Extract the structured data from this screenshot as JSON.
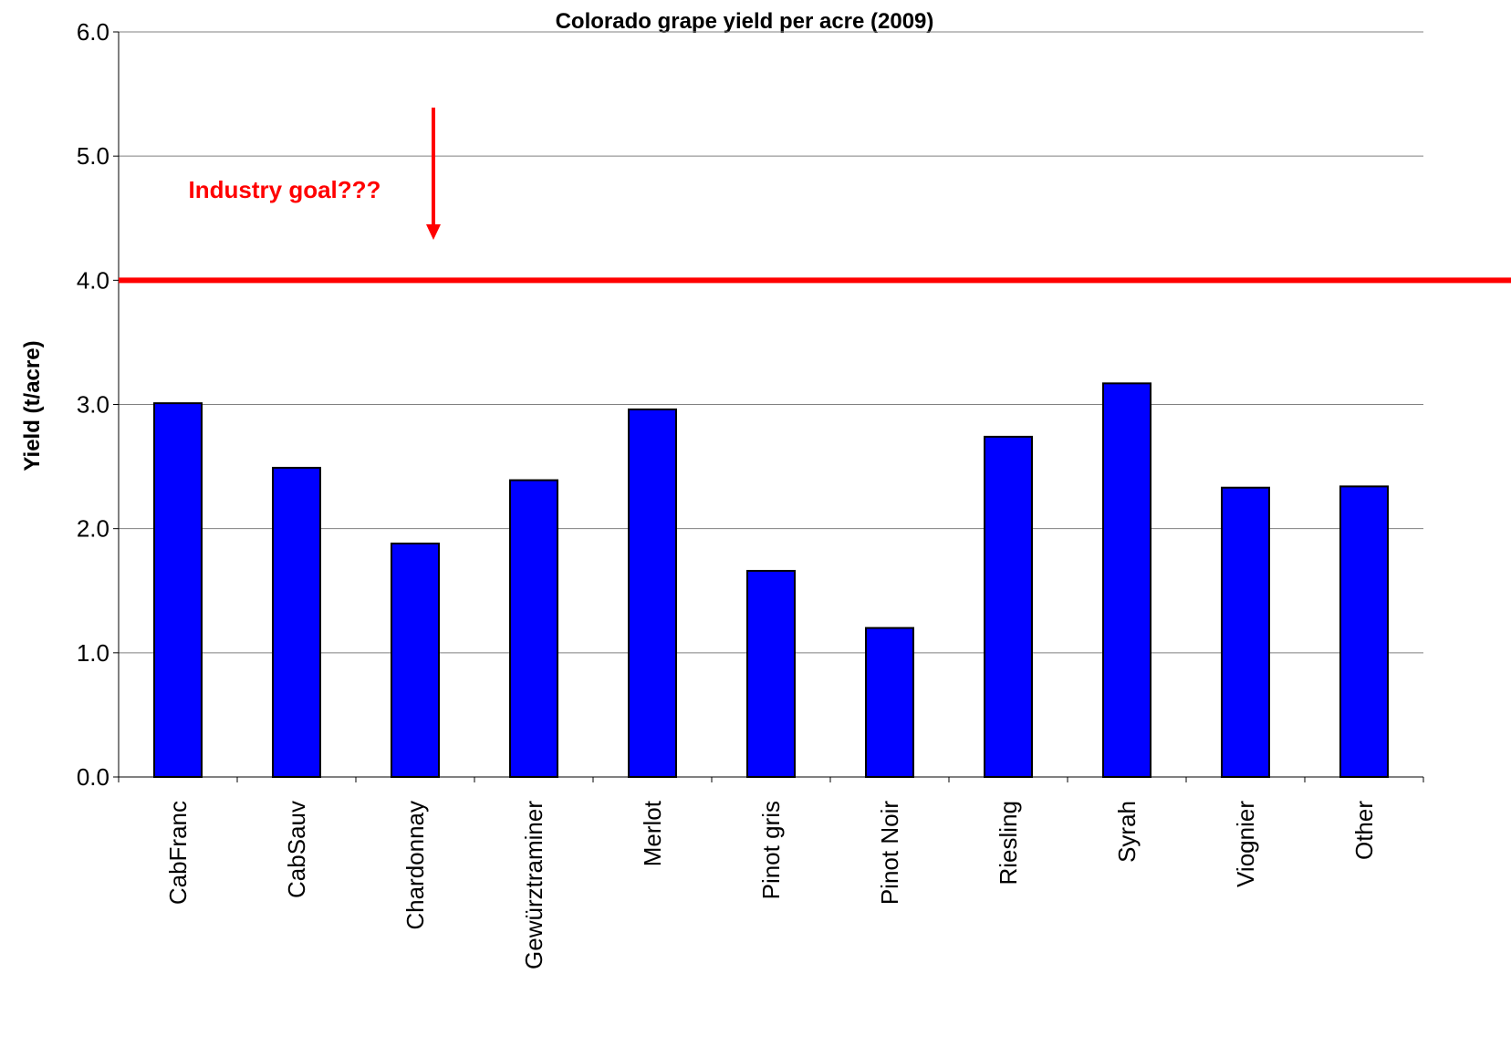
{
  "chart_data": {
    "type": "bar",
    "title": "Colorado grape yield per acre (2009)",
    "xlabel": "",
    "ylabel": "Yield (t/acre)",
    "ylim": [
      0,
      6
    ],
    "yticks": [
      "0.0",
      "1.0",
      "2.0",
      "3.0",
      "4.0",
      "5.0",
      "6.0"
    ],
    "grid": true,
    "categories": [
      "CabFranc",
      "CabSauv",
      "Chardonnay",
      "Gewürztraminer",
      "Merlot",
      "Pinot gris",
      "Pinot Noir",
      "Riesling",
      "Syrah",
      "Viognier",
      "Other"
    ],
    "values": [
      3.01,
      2.49,
      1.88,
      2.39,
      2.96,
      1.66,
      1.2,
      2.74,
      3.17,
      2.33,
      2.34
    ],
    "reference_line": {
      "value": 4.0
    },
    "annotation": {
      "text": "Industry goal???"
    }
  },
  "colors": {
    "bar": "#0000FF",
    "goal": "#FF0000",
    "grid": "#808080"
  }
}
